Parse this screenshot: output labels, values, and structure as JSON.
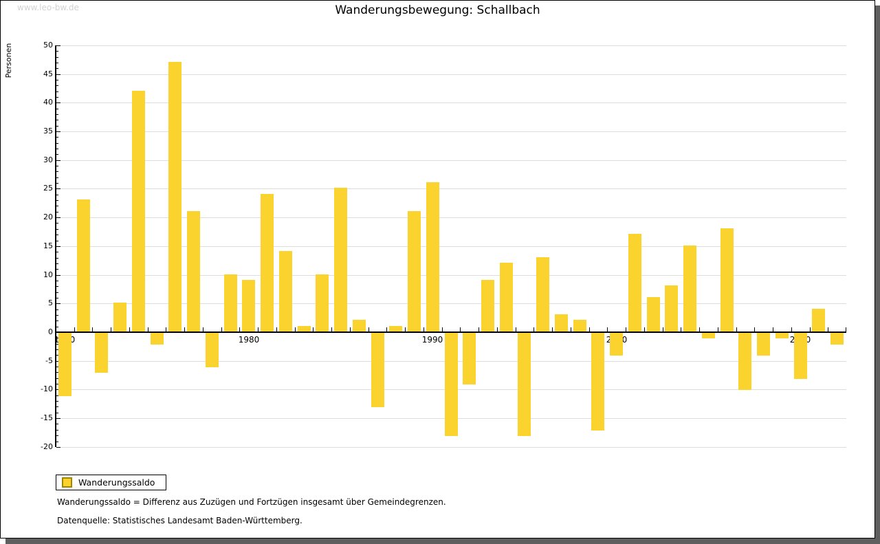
{
  "watermark": "www.leo-bw.de",
  "title": "Wanderungsbewegung: Schallbach",
  "y_axis_label": "Personen",
  "legend": {
    "label": "Wanderungssaldo"
  },
  "footnotes": [
    "Wanderungssaldo = Differenz aus Zuzügen und Fortzügen insgesamt über Gemeindegrenzen.",
    "Datenquelle: Statistisches Landesamt Baden-Württemberg."
  ],
  "colors": {
    "bar": "#fbd32f",
    "bar_swatch_border": "#a18700",
    "grid": "#dddddd",
    "axis": "#000000",
    "watermark": "#d2d2d2",
    "window_shadow": "#5f5f5f"
  },
  "chart_data": {
    "type": "bar",
    "title": "Wanderungsbewegung: Schallbach",
    "ylabel": "Personen",
    "series_name": "Wanderungssaldo",
    "ylim": [
      -20,
      50
    ],
    "ytick_step": 5,
    "grid": "horizontal",
    "legend_position": "bottom-left",
    "x_decade_labels": [
      "1970",
      "1980",
      "1990",
      "2000",
      "2010"
    ],
    "years": [
      1970,
      1971,
      1972,
      1973,
      1974,
      1975,
      1976,
      1977,
      1978,
      1979,
      1980,
      1981,
      1982,
      1983,
      1984,
      1985,
      1986,
      1987,
      1988,
      1989,
      1990,
      1991,
      1992,
      1993,
      1994,
      1995,
      1996,
      1997,
      1998,
      1999,
      2000,
      2001,
      2002,
      2003,
      2004,
      2005,
      2006,
      2007,
      2008,
      2009,
      2010,
      2011,
      2012
    ],
    "values": [
      -11,
      23,
      -7,
      5,
      42,
      -2,
      47,
      21,
      -6,
      10,
      9,
      24,
      14,
      1,
      10,
      25,
      2,
      -13,
      1,
      21,
      26,
      -18,
      -9,
      9,
      12,
      -18,
      13,
      3,
      2,
      -17,
      -4,
      17,
      6,
      8,
      15,
      -1,
      18,
      -10,
      -4,
      -1,
      -8,
      4,
      -2
    ]
  }
}
